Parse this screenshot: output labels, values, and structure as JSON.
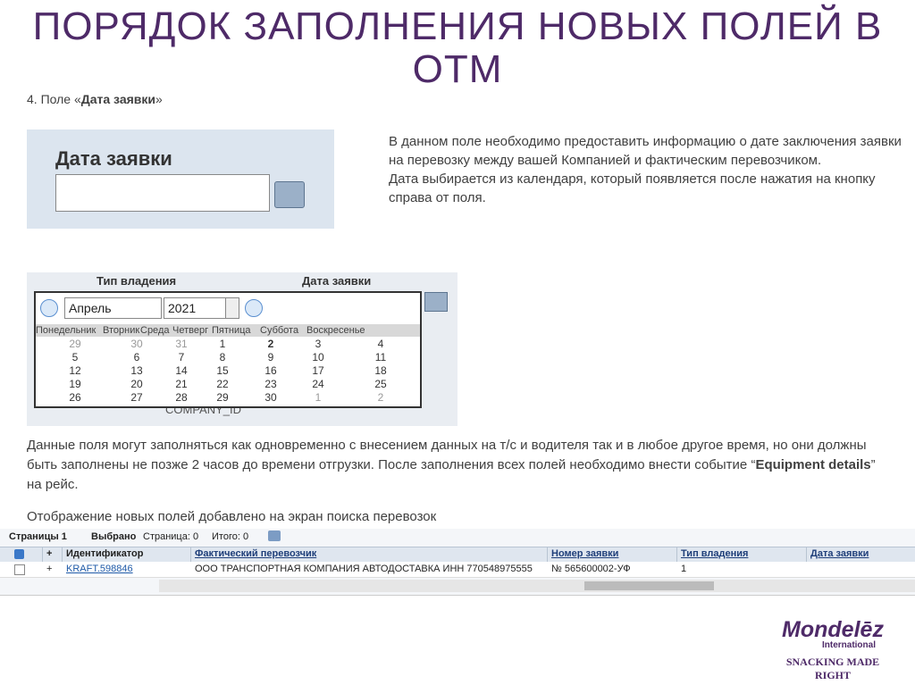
{
  "title": "ПОРЯДОК ЗАПОЛНЕНИЯ НОВЫХ ПОЛЕЙ В ОТМ",
  "field_heading": {
    "prefix": "4. Поле «",
    "name": "Дата заявки",
    "suffix": "»"
  },
  "field_widget": {
    "label": "Дата заявки"
  },
  "description": [
    "В данном поле необходимо предоставить информацию о дате заключения заявки на перевозку между вашей Компанией и фактическим перевозчиком.",
    "Дата выбирается из календаря, который появляется после нажатия на кнопку справа от поля."
  ],
  "calendar_screenshot": {
    "headers": [
      "Тип владения",
      "Дата заявки"
    ],
    "month": "Апрель",
    "year": "2021",
    "weekdays": [
      "Понедельник",
      "Вторник",
      "Среда",
      "Четверг",
      "Пятница",
      "Суббота",
      "Воскресенье"
    ],
    "weeks": [
      [
        29,
        30,
        31,
        1,
        2,
        3,
        4
      ],
      [
        5,
        6,
        7,
        8,
        9,
        10,
        11
      ],
      [
        12,
        13,
        14,
        15,
        16,
        17,
        18
      ],
      [
        19,
        20,
        21,
        22,
        23,
        24,
        25
      ],
      [
        26,
        27,
        28,
        29,
        30,
        1,
        2
      ]
    ],
    "footer": "COMPANY_ID"
  },
  "paragraph": {
    "parts": [
      "Данные поля могут заполняться как одновременно с внесением данных на т/с и водителя так и в любое другое время, но они должны быть заполнены не позже 2 часов до времени отгрузки. После заполнения всех полей необходимо внести событие “",
      "Equipment details",
      "” на рейс."
    ]
  },
  "note": "Отображение новых полей добавлено на экран поиска перевозок",
  "table_screenshot": {
    "toolbar": [
      "Страницы 1",
      "Выбрано",
      "Страница: 0",
      "Итого: 0"
    ],
    "columns": [
      "+",
      "Идентификатор",
      "Фактический перевозчик",
      "Номер заявки",
      "Тип владения",
      "Дата заявки"
    ],
    "row": [
      "+",
      "KRAFT.598846",
      "ООО ТРАНСПОРТНАЯ КОМПАНИЯ АВТОДОСТАВКА ИНН 770548975555",
      "№ 565600002-УФ",
      "1"
    ]
  },
  "logo": {
    "brand": "Mondelēz",
    "sub": "International",
    "tagline": "SNACKING MADE RIGHT"
  }
}
